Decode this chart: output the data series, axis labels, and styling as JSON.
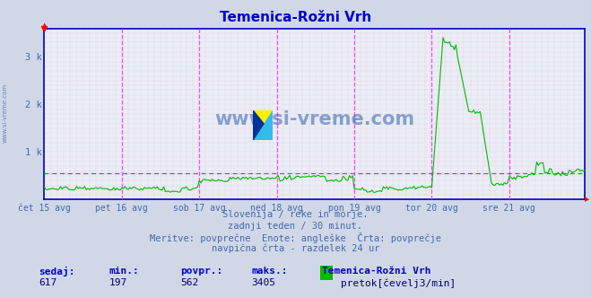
{
  "title": "Temenica-Rožni Vrh",
  "title_color": "#0000cc",
  "bg_color": "#d0d8e8",
  "plot_bg_color": "#e8eef8",
  "grid_color": "#ffaaaa",
  "x_label_color": "#4466aa",
  "line_color": "#00bb00",
  "avg_line_color": "#00bb00",
  "vline_color": "#ff44ff",
  "axis_color": "#0000bb",
  "n_points": 336,
  "x_ticks": [
    0,
    48,
    96,
    144,
    192,
    240,
    288
  ],
  "x_tick_labels": [
    "čet 15 avg",
    "pet 16 avg",
    "sob 17 avg",
    "ned 18 avg",
    "pon 19 avg",
    "tor 20 avg",
    "sre 21 avg"
  ],
  "y_ticks": [
    0,
    1000,
    2000,
    3000
  ],
  "y_tick_labels": [
    "",
    "1 k",
    "2 k",
    "3 k"
  ],
  "ylim": [
    0,
    3600
  ],
  "avg_value": 562,
  "max_value": 3405,
  "min_value": 197,
  "current_value": 617,
  "footer_line1": "Slovenija / reke in morje.",
  "footer_line2": "zadnji teden / 30 minut.",
  "footer_line3": "Meritve: povprečne  Enote: angleške  Črta: povprečje",
  "footer_line4": "navpična črta - razdelek 24 ur",
  "stat_label1": "sedaj:",
  "stat_label2": "min.:",
  "stat_label3": "povpr.:",
  "stat_label4": "maks.:",
  "stat_label5": "Temenica-Rožni Vrh",
  "legend_label": "pretok[čevelj3/min]",
  "watermark_text": "www.si-vreme.com",
  "watermark_color": "#2255aa",
  "side_watermark_color": "#6688bb"
}
